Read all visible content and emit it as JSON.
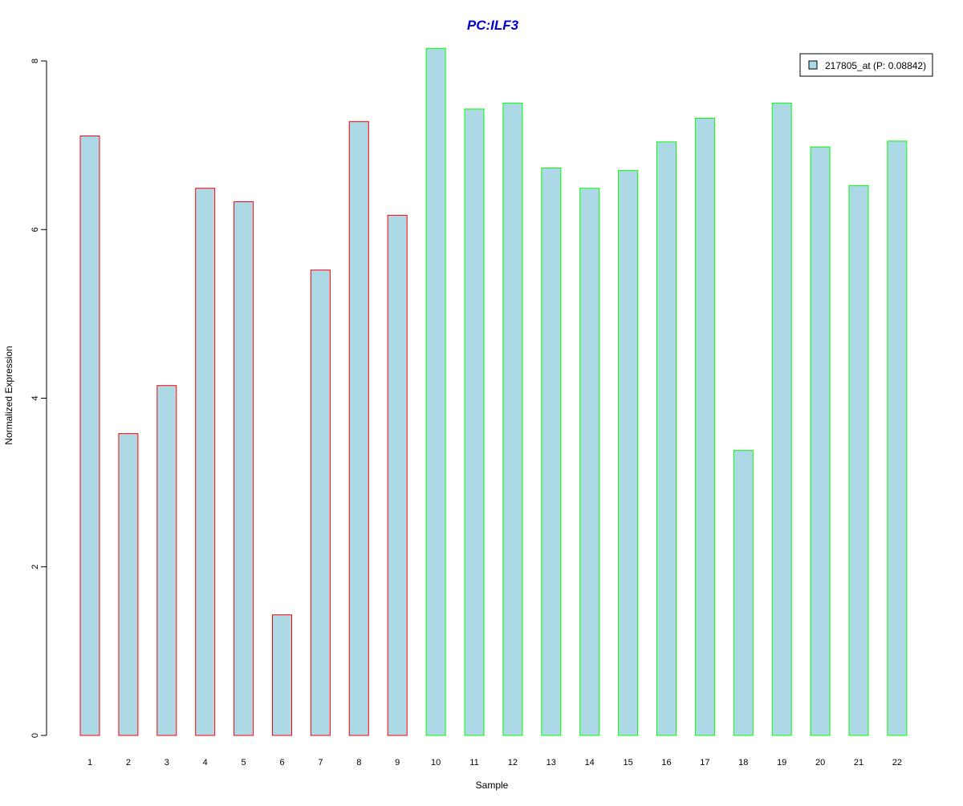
{
  "colors": {
    "title": "#0000CD",
    "bar_fill": "#ADD8E6",
    "group1_border": "#FF0000",
    "group2_border": "#00FF00",
    "axis": "#000000"
  },
  "chart_data": {
    "type": "bar",
    "title": "PC:ILF3",
    "xlabel": "Sample",
    "ylabel": "Normalized Expression",
    "ylim": [
      0,
      8
    ],
    "yticks": [
      0,
      2,
      4,
      6,
      8
    ],
    "grid": false,
    "legend_position": "top-right",
    "categories": [
      "1",
      "2",
      "3",
      "4",
      "5",
      "6",
      "7",
      "8",
      "9",
      "10",
      "11",
      "12",
      "13",
      "14",
      "15",
      "16",
      "17",
      "18",
      "19",
      "20",
      "21",
      "22"
    ],
    "series": [
      {
        "name": "217805_at (P: 0.08842)",
        "values": [
          7.11,
          3.58,
          4.15,
          6.49,
          6.33,
          1.43,
          5.52,
          7.28,
          6.17,
          8.15,
          7.43,
          7.5,
          6.73,
          6.49,
          6.7,
          7.04,
          7.32,
          3.38,
          7.5,
          6.98,
          6.52,
          7.05
        ],
        "border_groups": [
          "group1",
          "group1",
          "group1",
          "group1",
          "group1",
          "group1",
          "group1",
          "group1",
          "group1",
          "group2",
          "group2",
          "group2",
          "group2",
          "group2",
          "group2",
          "group2",
          "group2",
          "group2",
          "group2",
          "group2",
          "group2",
          "group2"
        ]
      }
    ]
  }
}
